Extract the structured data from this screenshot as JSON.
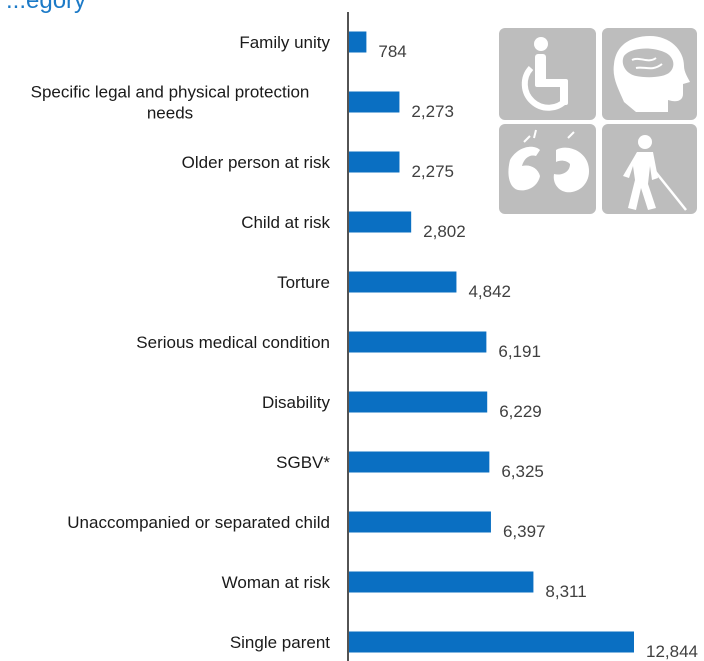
{
  "title": "...egory",
  "colors": {
    "bar": "#0a6fc2",
    "axis": "#1a1a1a",
    "title": "#1c7ac7",
    "icon_tile": "#bdbdbd"
  },
  "icons": [
    "wheelchair-icon",
    "brain-head-icon",
    "sign-language-icon",
    "blind-person-cane-icon"
  ],
  "chart_data": {
    "type": "bar",
    "orientation": "horizontal",
    "categories": [
      "Family unity",
      "Specific legal and physical protection needs",
      "Older person at risk",
      "Child at risk",
      "Torture",
      "Serious medical condition",
      "Disability",
      "SGBV*",
      "Unaccompanied or separated child",
      "Woman at risk",
      "Single parent"
    ],
    "values": [
      784,
      2273,
      2275,
      2802,
      4842,
      6191,
      6229,
      6325,
      6397,
      8311,
      12844
    ],
    "value_labels": [
      "784",
      "2,273",
      "2,275",
      "2,802",
      "4,842",
      "6,191",
      "6,229",
      "6,325",
      "6,397",
      "8,311",
      "12,844"
    ],
    "xlim": [
      0,
      12844
    ],
    "grid": false,
    "legend": "none"
  }
}
